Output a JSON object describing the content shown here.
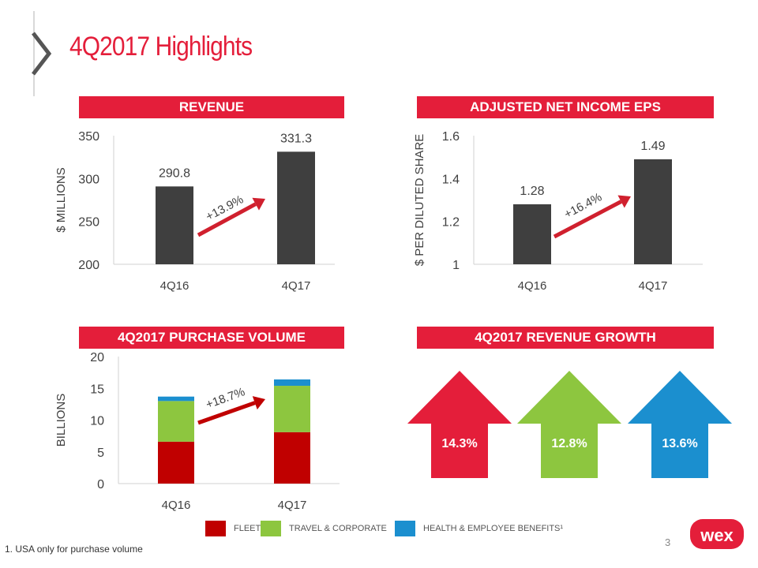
{
  "page": {
    "title": "4Q2017 Highlights",
    "page_number": "3",
    "footnote": "1. USA only for purchase volume",
    "logo_text": "wex"
  },
  "colors": {
    "red": "#e41e3a",
    "dark_red": "#c00000",
    "dark_bar": "#3f3f3f",
    "green": "#8dc63f",
    "blue": "#1b8fcf",
    "arrow_red": "#d0202e"
  },
  "legend": [
    {
      "label": "FLEET",
      "color": "#c00000"
    },
    {
      "label": "TRAVEL & CORPORATE",
      "color": "#8dc63f"
    },
    {
      "label": "HEALTH & EMPLOYEE BENEFITS¹",
      "color": "#1b8fcf"
    }
  ],
  "chart_data": [
    {
      "type": "bar",
      "title": "REVENUE",
      "ylabel": "$ MILLIONS",
      "categories": [
        "4Q16",
        "4Q17"
      ],
      "values": [
        290.8,
        331.3
      ],
      "value_labels": [
        "290.8",
        "331.3"
      ],
      "ylim": [
        200,
        350
      ],
      "yticks": [
        "200",
        "250",
        "300",
        "350"
      ],
      "annotation": "+13.9%"
    },
    {
      "type": "bar",
      "title": "ADJUSTED NET INCOME EPS",
      "ylabel": "$ PER DILUTED SHARE",
      "categories": [
        "4Q16",
        "4Q17"
      ],
      "values": [
        1.28,
        1.49
      ],
      "value_labels": [
        "1.28",
        "1.49"
      ],
      "ylim": [
        1,
        1.6
      ],
      "yticks": [
        "1",
        "1.2",
        "1.4",
        "1.6"
      ],
      "annotation": "+16.4%"
    },
    {
      "type": "bar",
      "stacked": true,
      "title": "4Q2017 PURCHASE VOLUME",
      "ylabel": "BILLIONS",
      "categories": [
        "4Q16",
        "4Q17"
      ],
      "series": [
        {
          "name": "FLEET",
          "values": [
            6.6,
            8.1
          ]
        },
        {
          "name": "TRAVEL & CORPORATE",
          "values": [
            6.4,
            7.3
          ]
        },
        {
          "name": "HEALTH & EMPLOYEE BENEFITS¹",
          "values": [
            0.7,
            1.0
          ]
        }
      ],
      "ylim": [
        0,
        20
      ],
      "yticks": [
        "0",
        "5",
        "10",
        "15",
        "20"
      ],
      "annotation": "+18.7%"
    },
    {
      "type": "bar",
      "title": "4Q2017 REVENUE GROWTH",
      "categories": [
        "FLEET",
        "TRAVEL & CORPORATE",
        "HEALTH & EMPLOYEE BENEFITS¹"
      ],
      "values": [
        14.3,
        12.8,
        13.6
      ],
      "value_labels": [
        "14.3%",
        "12.8%",
        "13.6%"
      ]
    }
  ]
}
